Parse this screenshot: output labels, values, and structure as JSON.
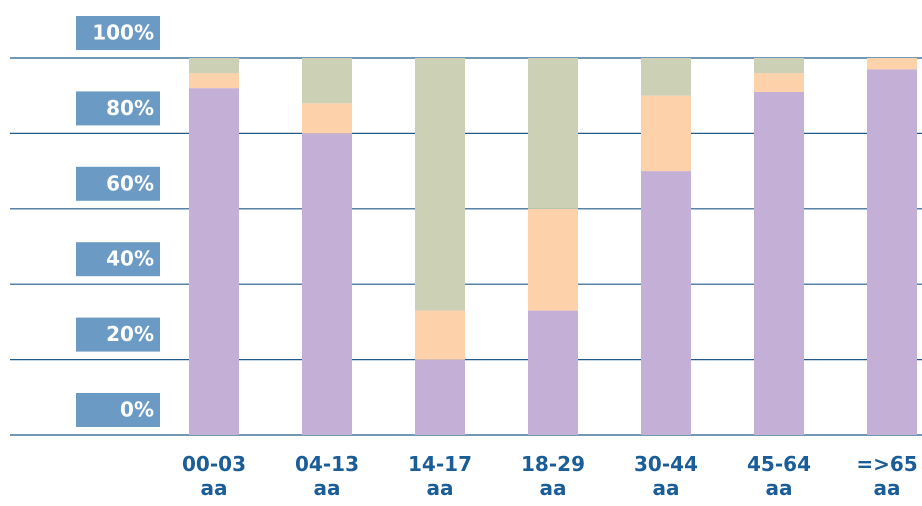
{
  "chart_data": {
    "type": "stacked-bar",
    "categories": [
      "00-03 aa",
      "04-13 aa",
      "14-17 aa",
      "18-29 aa",
      "30-44 aa",
      "45-64 aa",
      "=>65 aa"
    ],
    "series": [
      {
        "color": "#c4afd7",
        "values": [
          92,
          80,
          20,
          33,
          70,
          91,
          97
        ]
      },
      {
        "color": "#fdd1aa",
        "values": [
          4,
          8,
          13,
          27,
          20,
          5,
          3
        ]
      },
      {
        "color": "#ccd1b5",
        "values": [
          4,
          12,
          67,
          40,
          10,
          4,
          0
        ]
      }
    ],
    "ylim": [
      0,
      100
    ],
    "yticks": [
      {
        "value": 0,
        "label": "0%"
      },
      {
        "value": 20,
        "label": "20%"
      },
      {
        "value": 40,
        "label": "40%"
      },
      {
        "value": 60,
        "label": "60%"
      },
      {
        "value": 80,
        "label": "80%"
      },
      {
        "value": 100,
        "label": "100%"
      }
    ],
    "grid": true
  }
}
